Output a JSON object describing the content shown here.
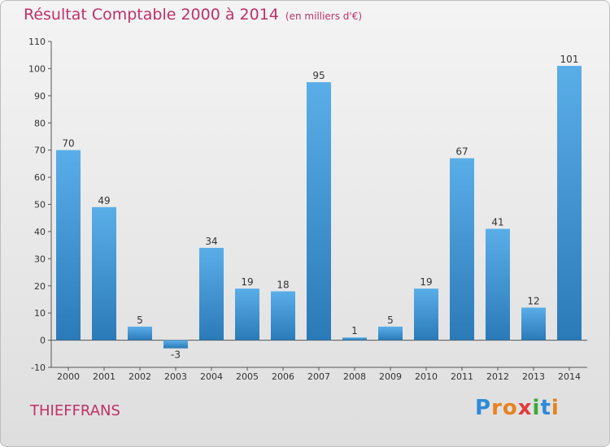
{
  "title": {
    "main": "Résultat Comptable 2000 à 2014",
    "unit": "(en milliers d'€)"
  },
  "commune": "THIEFFRANS",
  "brand": {
    "name": "Proxiti",
    "letters": [
      "P",
      "r",
      "o",
      "x",
      "i",
      "t",
      "i"
    ],
    "letter_colors": [
      "#2e8bd8",
      "#e8821e",
      "#e8821e",
      "#e23b3b",
      "#3aaa35",
      "#2e8bd8",
      "#e8821e"
    ]
  },
  "colors": {
    "title": "#c0306a",
    "bar_top": "#5aaee8",
    "bar_bottom": "#2a7ab8"
  },
  "chart_data": {
    "type": "bar",
    "title": "Résultat Comptable 2000 à 2014",
    "subtitle": "(en milliers d'€)",
    "categories": [
      "2000",
      "2001",
      "2002",
      "2003",
      "2004",
      "2005",
      "2006",
      "2007",
      "2008",
      "2009",
      "2010",
      "2011",
      "2012",
      "2013",
      "2014"
    ],
    "values": [
      70,
      49,
      5,
      -3,
      34,
      19,
      18,
      95,
      1,
      5,
      19,
      67,
      41,
      12,
      101
    ],
    "ylim": [
      -10,
      110
    ],
    "yticks": [
      -10,
      0,
      10,
      20,
      30,
      40,
      50,
      60,
      70,
      80,
      90,
      100,
      110
    ],
    "xlabel": "",
    "ylabel": "",
    "grid": false
  }
}
